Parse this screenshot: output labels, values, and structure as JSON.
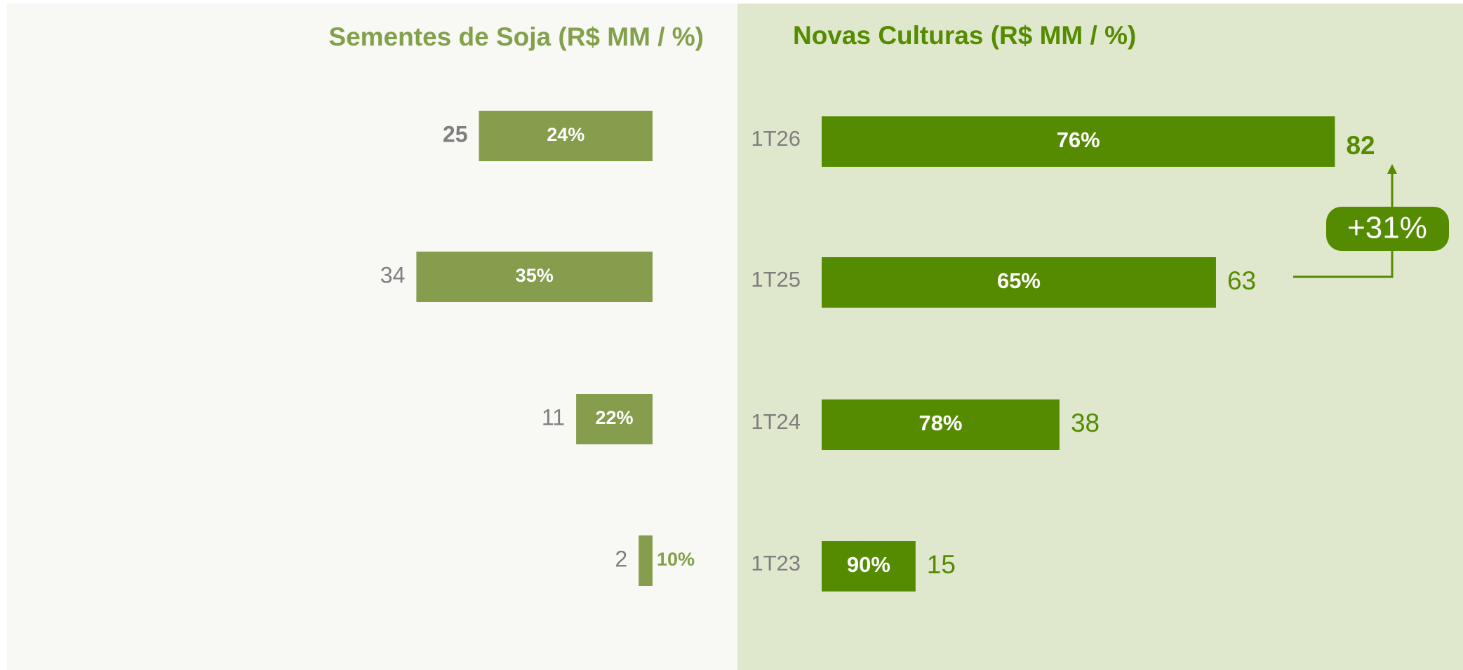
{
  "chart_data": [
    {
      "type": "bar",
      "orientation": "horizontal-left",
      "title": "Sementes de Soja (R$ MM / %)",
      "values": [
        25,
        34,
        11,
        2
      ],
      "percent_labels": [
        "24%",
        "35%",
        "22%",
        "10%"
      ],
      "color": "#859d4c",
      "xlim": [
        0,
        40
      ]
    },
    {
      "type": "bar",
      "orientation": "horizontal",
      "title": "Novas Culturas (R$ MM / %)",
      "categories": [
        "1T26",
        "1T25",
        "1T24",
        "1T23"
      ],
      "values": [
        82,
        63,
        38,
        15
      ],
      "percent_labels": [
        "76%",
        "65%",
        "78%",
        "90%"
      ],
      "color": "#558b00",
      "xlim": [
        0,
        100
      ],
      "annotation": "+31%"
    }
  ]
}
